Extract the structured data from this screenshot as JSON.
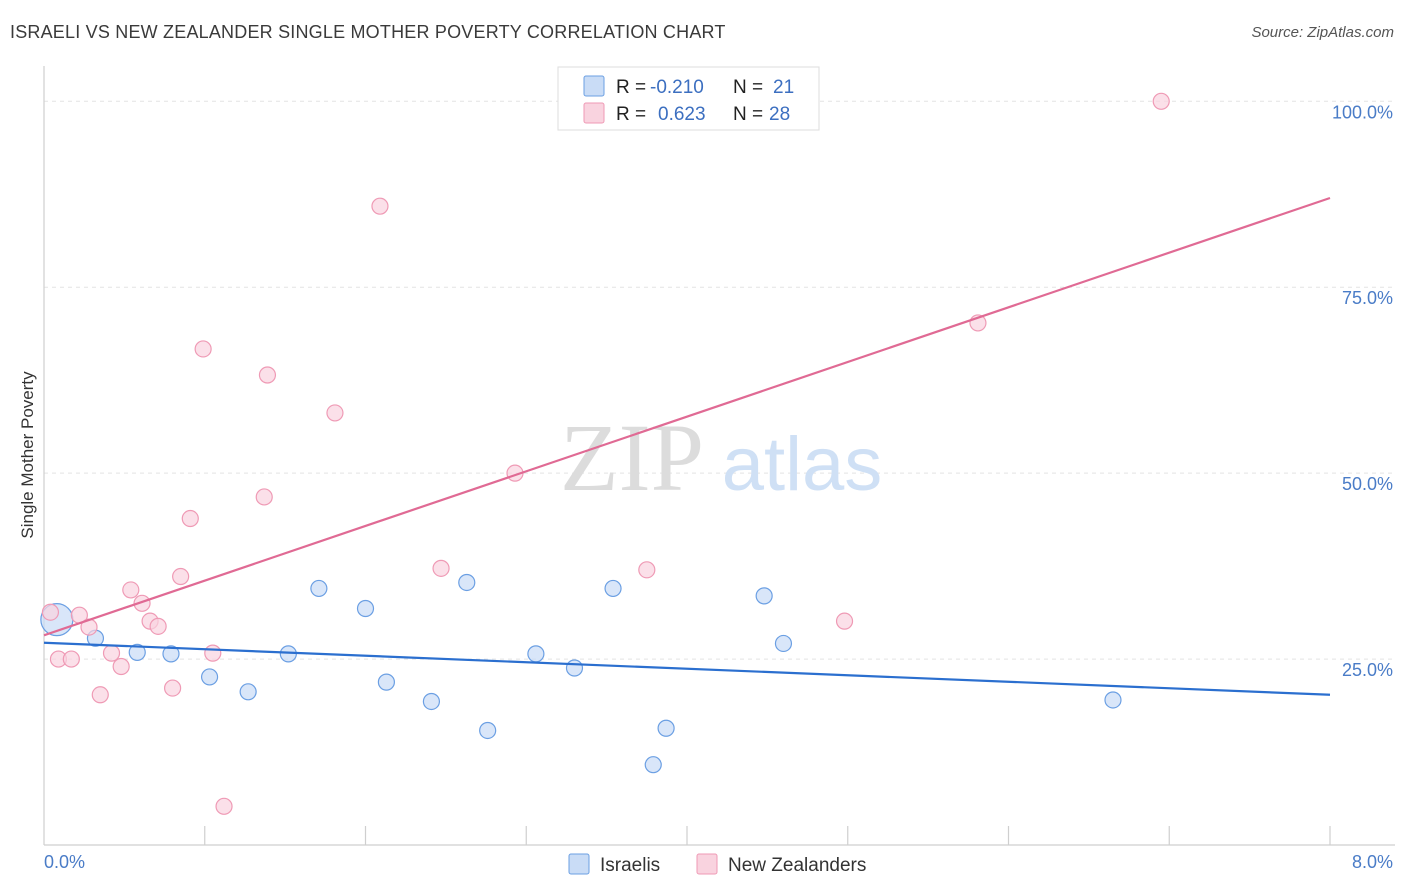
{
  "header": {
    "title": "ISRAELI VS NEW ZEALANDER SINGLE MOTHER POVERTY CORRELATION CHART",
    "source": "Source: ZipAtlas.com"
  },
  "watermark": {
    "zip": "ZIP",
    "atlas": "atlas"
  },
  "chart_data": {
    "type": "scatter",
    "title": "ISRAELI VS NEW ZEALANDER SINGLE MOTHER POVERTY CORRELATION CHART",
    "xlabel": "",
    "ylabel": "Single Mother Poverty",
    "xlim": [
      0,
      8
    ],
    "ylim": [
      0,
      103
    ],
    "x_tick_labels": [
      "0.0%",
      "8.0%"
    ],
    "y_ticks": [
      25,
      50,
      75,
      100
    ],
    "y_tick_labels": [
      "25.0%",
      "50.0%",
      "75.0%",
      "100.0%"
    ],
    "grid": true,
    "legend_position": "top-center",
    "series": [
      {
        "name": "Israelis",
        "color": "#6b9fe3",
        "fill": "#c9dcf6",
        "line_color": "#2b6fcf",
        "R": "-0.210",
        "N": "21",
        "trend": {
          "x": [
            0,
            8
          ],
          "y": [
            27.2,
            20.2
          ]
        },
        "points": [
          {
            "x": 0.08,
            "y": 30.3,
            "big": true
          },
          {
            "x": 0.32,
            "y": 27.8
          },
          {
            "x": 0.58,
            "y": 25.9
          },
          {
            "x": 0.79,
            "y": 25.7
          },
          {
            "x": 1.03,
            "y": 22.6
          },
          {
            "x": 1.27,
            "y": 20.6
          },
          {
            "x": 1.52,
            "y": 25.7
          },
          {
            "x": 1.71,
            "y": 34.5
          },
          {
            "x": 2.0,
            "y": 31.8
          },
          {
            "x": 2.13,
            "y": 21.9
          },
          {
            "x": 2.41,
            "y": 19.3
          },
          {
            "x": 2.63,
            "y": 35.3
          },
          {
            "x": 2.76,
            "y": 15.4
          },
          {
            "x": 3.06,
            "y": 25.7
          },
          {
            "x": 3.3,
            "y": 23.8
          },
          {
            "x": 3.54,
            "y": 34.5
          },
          {
            "x": 3.79,
            "y": 10.8
          },
          {
            "x": 3.87,
            "y": 15.7
          },
          {
            "x": 4.48,
            "y": 33.5
          },
          {
            "x": 4.6,
            "y": 27.1
          },
          {
            "x": 6.65,
            "y": 19.5
          }
        ]
      },
      {
        "name": "New Zealanders",
        "color": "#ef9ab5",
        "fill": "#f9d3df",
        "line_color": "#e06a94",
        "R": "0.623",
        "N": "28",
        "trend": {
          "x": [
            0,
            8
          ],
          "y": [
            28.2,
            87.0
          ]
        },
        "points": [
          {
            "x": 0.04,
            "y": 31.3
          },
          {
            "x": 0.09,
            "y": 25.0
          },
          {
            "x": 0.17,
            "y": 25.0
          },
          {
            "x": 0.22,
            "y": 30.9
          },
          {
            "x": 0.28,
            "y": 29.3
          },
          {
            "x": 0.35,
            "y": 20.2
          },
          {
            "x": 0.42,
            "y": 25.8
          },
          {
            "x": 0.48,
            "y": 24.0
          },
          {
            "x": 0.54,
            "y": 34.3
          },
          {
            "x": 0.61,
            "y": 32.5
          },
          {
            "x": 0.66,
            "y": 30.1
          },
          {
            "x": 0.71,
            "y": 29.4
          },
          {
            "x": 0.8,
            "y": 21.1
          },
          {
            "x": 0.85,
            "y": 36.1
          },
          {
            "x": 0.91,
            "y": 43.9
          },
          {
            "x": 0.99,
            "y": 66.7
          },
          {
            "x": 1.05,
            "y": 25.8
          },
          {
            "x": 1.12,
            "y": 5.2
          },
          {
            "x": 1.37,
            "y": 46.8
          },
          {
            "x": 1.39,
            "y": 63.2
          },
          {
            "x": 1.81,
            "y": 58.1
          },
          {
            "x": 2.09,
            "y": 85.9
          },
          {
            "x": 2.47,
            "y": 37.2
          },
          {
            "x": 2.93,
            "y": 50.0
          },
          {
            "x": 3.75,
            "y": 37.0
          },
          {
            "x": 4.98,
            "y": 30.1
          },
          {
            "x": 5.81,
            "y": 70.2
          },
          {
            "x": 6.95,
            "y": 100.0
          }
        ]
      }
    ]
  }
}
